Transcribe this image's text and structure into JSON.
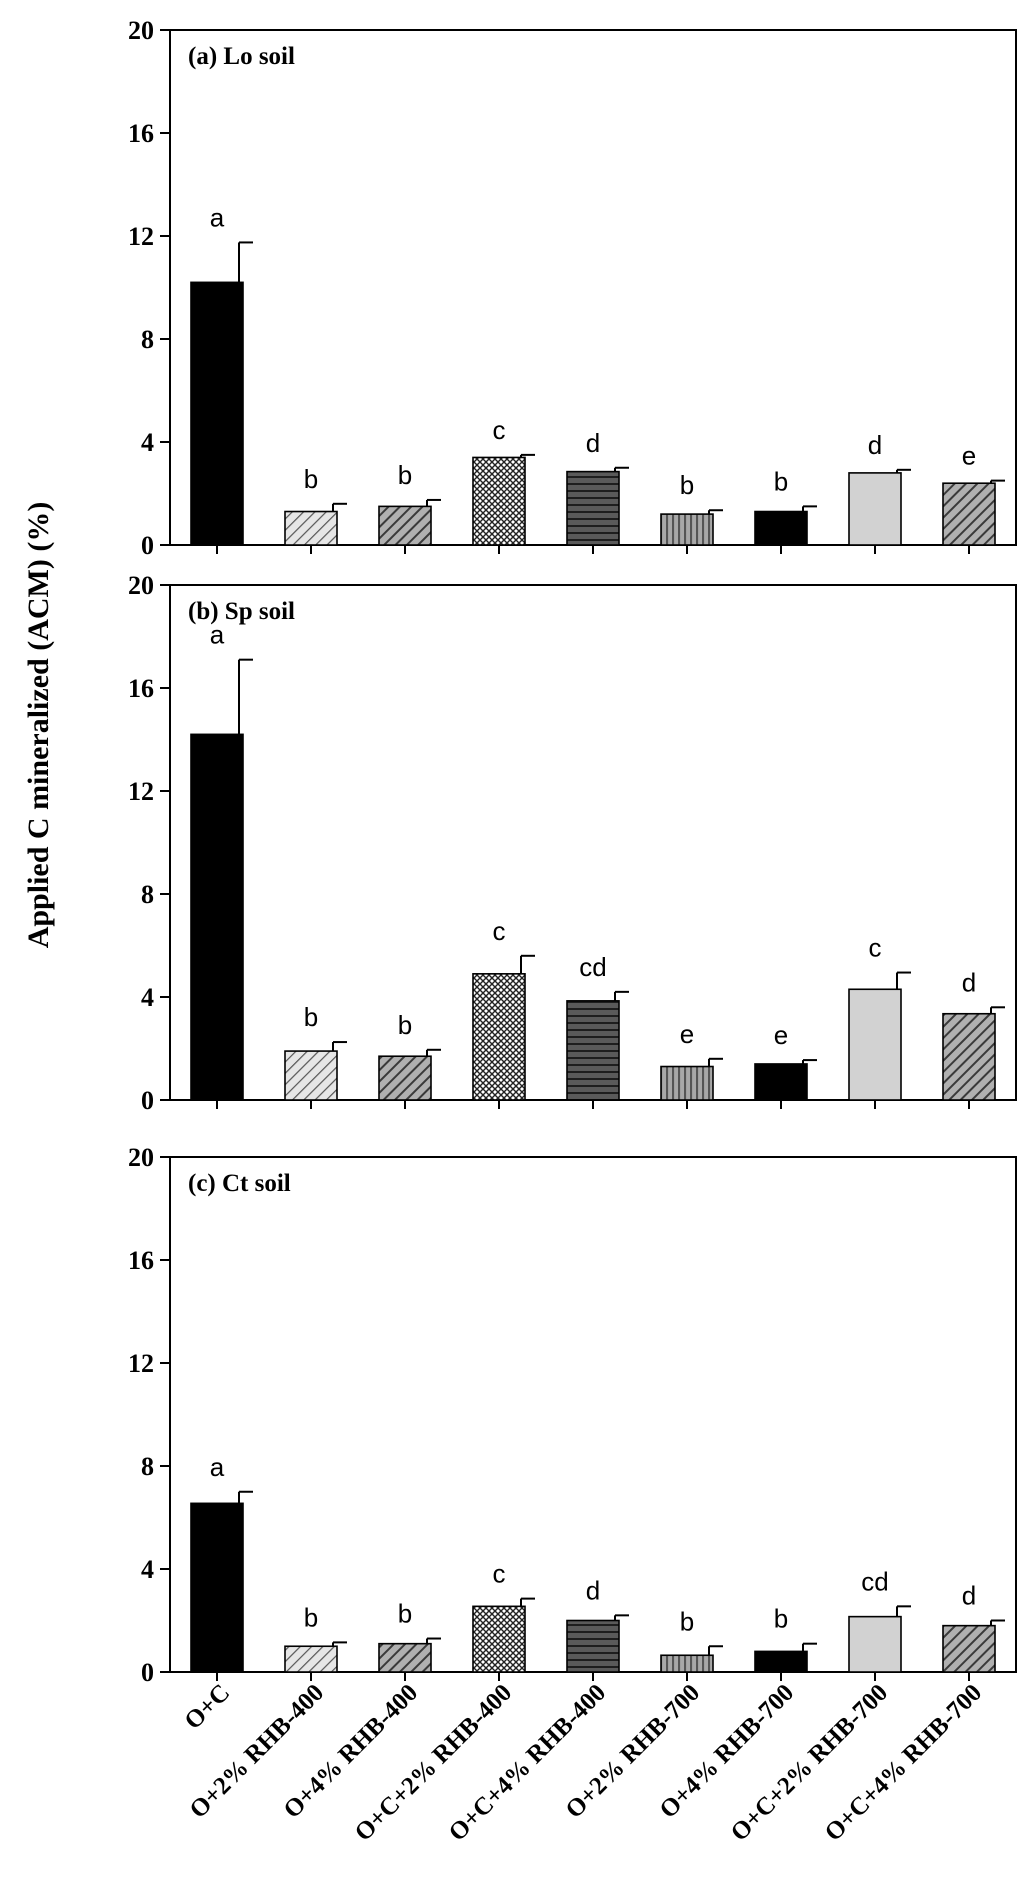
{
  "figure": {
    "ylabel": "Applied C mineralized (ACM) (%)"
  },
  "chart_data": [
    {
      "type": "bar",
      "title": "(a) Lo soil",
      "categories": [
        "O+C",
        "O+2% RHB-400",
        "O+4% RHB-400",
        "O+C+2% RHB-400",
        "O+C+4% RHB-400",
        "O+2% RHB-700",
        "O+4% RHB-700",
        "O+C+2% RHB-700",
        "O+C+4% RHB-700"
      ],
      "values": [
        10.2,
        1.3,
        1.5,
        3.4,
        2.85,
        1.2,
        1.3,
        2.8,
        2.4
      ],
      "errors": [
        1.55,
        0.3,
        0.25,
        0.1,
        0.15,
        0.15,
        0.2,
        0.12,
        0.1
      ],
      "sig_labels": [
        "a",
        "b",
        "b",
        "c",
        "d",
        "b",
        "b",
        "d",
        "e"
      ],
      "ylim": [
        0,
        20
      ],
      "yticks": [
        0,
        4,
        8,
        12,
        16,
        20
      ],
      "xlabel": "",
      "ylabel": ""
    },
    {
      "type": "bar",
      "title": "(b) Sp soil",
      "categories": [
        "O+C",
        "O+2% RHB-400",
        "O+4% RHB-400",
        "O+C+2% RHB-400",
        "O+C+4% RHB-400",
        "O+2% RHB-700",
        "O+4% RHB-700",
        "O+C+2% RHB-700",
        "O+C+4% RHB-700"
      ],
      "values": [
        14.2,
        1.9,
        1.7,
        4.9,
        3.85,
        1.3,
        1.4,
        4.3,
        3.35
      ],
      "errors": [
        2.9,
        0.35,
        0.25,
        0.7,
        0.35,
        0.3,
        0.15,
        0.65,
        0.25
      ],
      "sig_labels": [
        "a",
        "b",
        "b",
        "c",
        "cd",
        "e",
        "e",
        "c",
        "d"
      ],
      "ylim": [
        0,
        20
      ],
      "yticks": [
        0,
        4,
        8,
        12,
        16,
        20
      ],
      "xlabel": "",
      "ylabel": ""
    },
    {
      "type": "bar",
      "title": "(c) Ct soil",
      "categories": [
        "O+C",
        "O+2% RHB-400",
        "O+4% RHB-400",
        "O+C+2% RHB-400",
        "O+C+4% RHB-400",
        "O+2% RHB-700",
        "O+4% RHB-700",
        "O+C+2% RHB-700",
        "O+C+4% RHB-700"
      ],
      "values": [
        6.55,
        1.0,
        1.1,
        2.55,
        2.0,
        0.65,
        0.8,
        2.15,
        1.8
      ],
      "errors": [
        0.45,
        0.15,
        0.2,
        0.3,
        0.2,
        0.35,
        0.3,
        0.4,
        0.2
      ],
      "sig_labels": [
        "a",
        "b",
        "b",
        "c",
        "d",
        "b",
        "b",
        "cd",
        "d"
      ],
      "ylim": [
        0,
        20
      ],
      "yticks": [
        0,
        4,
        8,
        12,
        16,
        20
      ],
      "xlabel": "",
      "ylabel": ""
    }
  ],
  "colors": {
    "solid_black": "#000000",
    "dark_gray": "#5a5a5a",
    "mid_gray": "#8c8c8c",
    "light_gray": "#d2d2d2",
    "pale_gray": "#e6e6e6",
    "axis": "#000000"
  },
  "bar_styles": [
    "solid-black",
    "light-diagonal",
    "dark-diagonal",
    "crosshatch",
    "horizontal-lines",
    "vertical-lines",
    "solid-black",
    "light-solid",
    "dark-diagonal"
  ]
}
